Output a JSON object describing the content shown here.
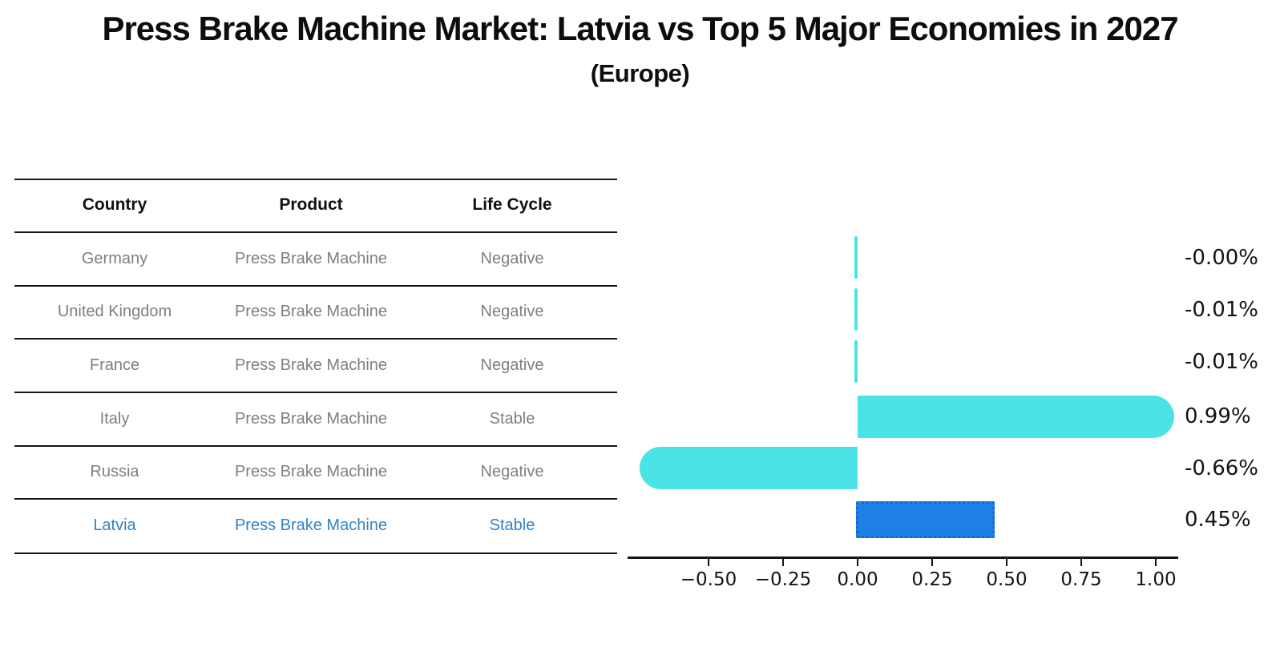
{
  "title": "Press Brake Machine Market: Latvia vs Top 5 Major Economies in 2027",
  "subtitle": "(Europe)",
  "table": {
    "headers": [
      "Country",
      "Product",
      "Life Cycle"
    ],
    "rows": [
      {
        "country": "Germany",
        "product": "Press Brake Machine",
        "life_cycle": "Negative",
        "highlighted": false
      },
      {
        "country": "United Kingdom",
        "product": "Press Brake Machine",
        "life_cycle": "Negative",
        "highlighted": false
      },
      {
        "country": "France",
        "product": "Press Brake Machine",
        "life_cycle": "Negative",
        "highlighted": false
      },
      {
        "country": "Italy",
        "product": "Press Brake Machine",
        "life_cycle": "Stable",
        "highlighted": false
      },
      {
        "country": "Russia",
        "product": "Press Brake Machine",
        "life_cycle": "Negative",
        "highlighted": false
      },
      {
        "country": "Latvia",
        "product": "Press Brake Machine",
        "life_cycle": "Stable",
        "highlighted": true
      }
    ]
  },
  "chart_data": {
    "type": "bar",
    "orientation": "horizontal",
    "title": "Press Brake Machine Market: Latvia vs Top 5 Major Economies in 2027",
    "subtitle": "(Europe)",
    "categories": [
      "Germany",
      "United Kingdom",
      "France",
      "Italy",
      "Russia",
      "Latvia"
    ],
    "values": [
      -0.0,
      -0.01,
      -0.01,
      0.99,
      -0.66,
      0.45
    ],
    "value_labels": [
      "-0.00%",
      "-0.01%",
      "-0.01%",
      "0.99%",
      "-0.66%",
      "0.45%"
    ],
    "x_ticks": [
      -0.5,
      -0.25,
      0,
      0.25,
      0.5,
      0.75,
      1.0
    ],
    "x_tick_labels": [
      "−0.50",
      "−0.25",
      "0.00",
      "0.25",
      "0.50",
      "0.75",
      "1.00"
    ],
    "xlim": [
      -0.77,
      1.08
    ],
    "xlabel": "",
    "ylabel": "",
    "grid": false,
    "legend": "none",
    "highlight_index": 5
  },
  "colors": {
    "bar_cyan": "#4AE3E6",
    "bar_blue": "#1E7FE6",
    "bar_blue_border": "#1668CF",
    "highlight_text": "#3084C7",
    "row_text": "#7F7F7F",
    "axis": "#141414"
  }
}
